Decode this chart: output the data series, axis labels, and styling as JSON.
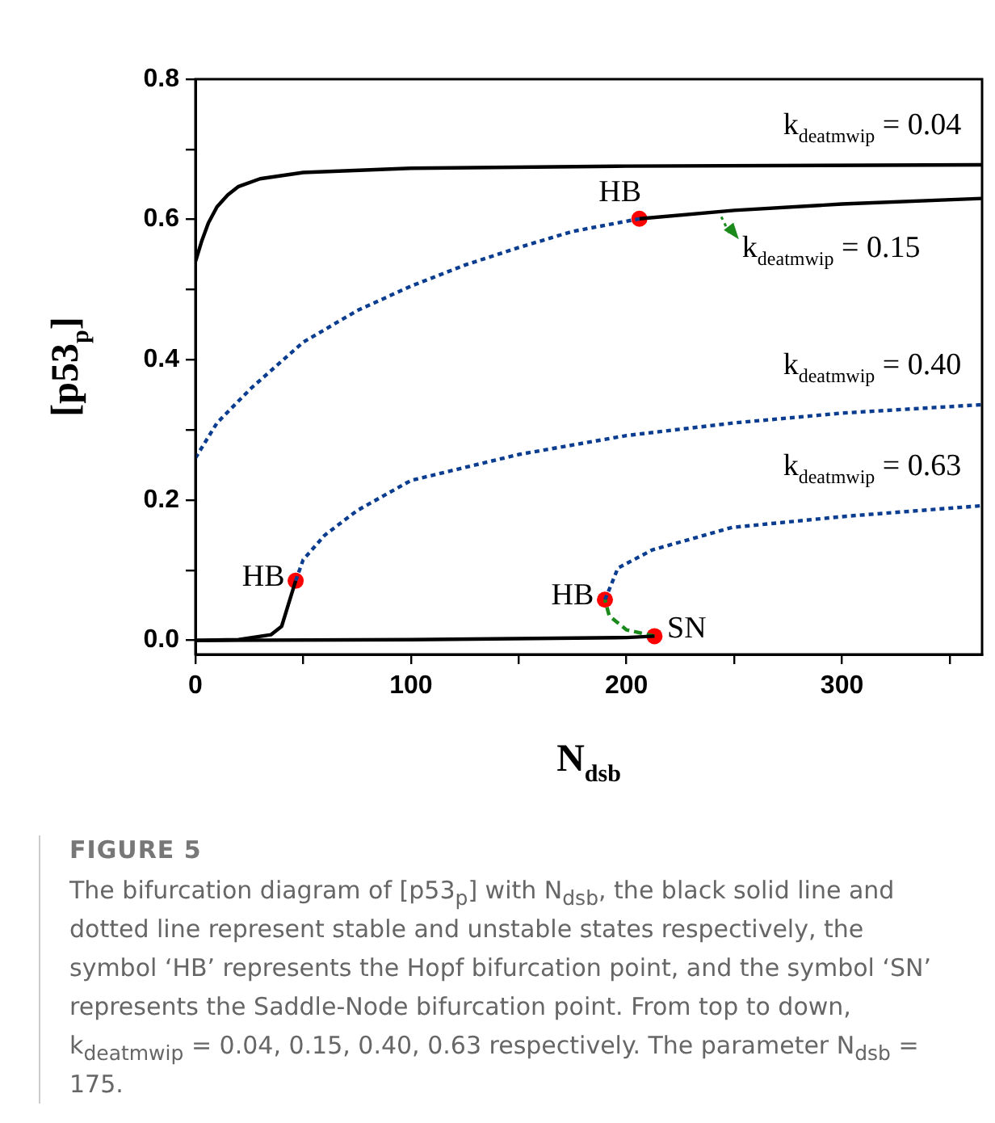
{
  "chart_data": {
    "type": "line",
    "title": "FIGURE 5",
    "xlabel": "N$_{dsb}$",
    "ylabel": "[p53$_{p}$]",
    "xlim": [
      0,
      365
    ],
    "ylim": [
      -0.02,
      0.8
    ],
    "xticks": [
      0,
      {
        "value": 50,
        "label": null
      },
      100,
      {
        "value": 150,
        "label": null
      },
      200,
      {
        "value": 250,
        "label": null
      },
      300,
      {
        "value": 350,
        "label": null
      }
    ],
    "yticks": [
      {
        "value": 0,
        "label": "0.0"
      },
      {
        "value": 0.1,
        "label": null
      },
      0.2,
      {
        "value": 0.3,
        "label": null
      },
      0.4,
      {
        "value": 0.5,
        "label": null
      },
      0.6,
      {
        "value": 0.7,
        "label": null
      },
      0.8
    ],
    "grid": false,
    "legend": false,
    "series": [
      {
        "color": "#000000",
        "line_style": "solid",
        "marker": "none",
        "x": [
          0,
          3,
          6,
          10,
          15,
          20,
          30,
          50,
          100,
          200,
          365
        ],
        "values": [
          0.54,
          0.57,
          0.595,
          0.618,
          0.635,
          0.647,
          0.658,
          0.667,
          0.673,
          0.676,
          0.678
        ]
      },
      {
        "color": "#0a3d8f",
        "line_style": "dotted",
        "marker": "none",
        "x": [
          0,
          10,
          26,
          50,
          75,
          100,
          125,
          150,
          175,
          206
        ],
        "values": [
          0.26,
          0.31,
          0.36,
          0.425,
          0.47,
          0.505,
          0.535,
          0.56,
          0.583,
          0.601
        ]
      },
      {
        "color": "#000000",
        "line_style": "solid",
        "marker": "none",
        "x": [
          206,
          250,
          300,
          365
        ],
        "values": [
          0.601,
          0.613,
          0.622,
          0.63
        ]
      },
      {
        "color": "#000000",
        "line_style": "solid",
        "marker": "none",
        "x": [
          0,
          20,
          35,
          40,
          43,
          46.5
        ],
        "values": [
          0,
          0.001,
          0.008,
          0.02,
          0.05,
          0.085
        ]
      },
      {
        "color": "#0a3d8f",
        "line_style": "dotted",
        "marker": "none",
        "x": [
          46.5,
          50,
          60,
          75,
          100,
          150,
          200,
          250,
          300,
          365
        ],
        "values": [
          0.085,
          0.115,
          0.15,
          0.185,
          0.228,
          0.265,
          0.292,
          0.31,
          0.324,
          0.336
        ]
      },
      {
        "color": "#000000",
        "line_style": "solid",
        "marker": "none",
        "x": [
          0,
          100,
          200,
          213
        ],
        "values": [
          0,
          0.001,
          0.004,
          0.006
        ]
      },
      {
        "color": "#1a8a1a",
        "line_style": "dashed",
        "marker": "none",
        "x": [
          213,
          200,
          192,
          190
        ],
        "values": [
          0.006,
          0.015,
          0.035,
          0.058
        ]
      },
      {
        "color": "#0a3d8f",
        "line_style": "dotted",
        "marker": "none",
        "x": [
          190,
          193,
          196,
          212,
          249,
          302,
          365
        ],
        "values": [
          0.058,
          0.08,
          0.103,
          0.129,
          0.161,
          0.177,
          0.192
        ]
      },
      {
        "type": "scatter",
        "color": "#ff0000",
        "marker": "circle",
        "x": [
          206,
          46.5,
          190,
          213
        ],
        "values": [
          0.601,
          0.085,
          0.058,
          0.006
        ]
      }
    ],
    "annotations": [
      {
        "text": "k$_{deatmwip}$ = 0.04",
        "x": 365,
        "y": 0.678
      },
      {
        "text": "k$_{deatmwip}$ = 0.15",
        "x": 250,
        "y": 0.613
      },
      {
        "text": "k$_{deatmwip}$ = 0.40",
        "x": 365,
        "y": 0.336
      },
      {
        "text": "k$_{deatmwip}$ = 0.63",
        "x": 365,
        "y": 0.192
      },
      {
        "text": "HB",
        "x": 206,
        "y": 0.601
      },
      {
        "text": "HB",
        "x": 46.5,
        "y": 0.085
      },
      {
        "text": "HB",
        "x": 190,
        "y": 0.058
      },
      {
        "text": "SN",
        "x": 213,
        "y": 0.006
      },
      "The bifurcation diagram of [p53$_{p}$] with N$_{dsb}$, the black solid line and dotted line represent stable and unstable states respectively, the symbol ‘HB’ represents the Hopf bifurcation point, and the symbol ‘SN’ represents the Saddle-Node bifurcation point. From top to down, k$_{deatmwip}$ = 0.04, 0.15, 0.40, 0.63 respectively. The parameter N$_{dsb}$ = 175."
    ]
  }
}
